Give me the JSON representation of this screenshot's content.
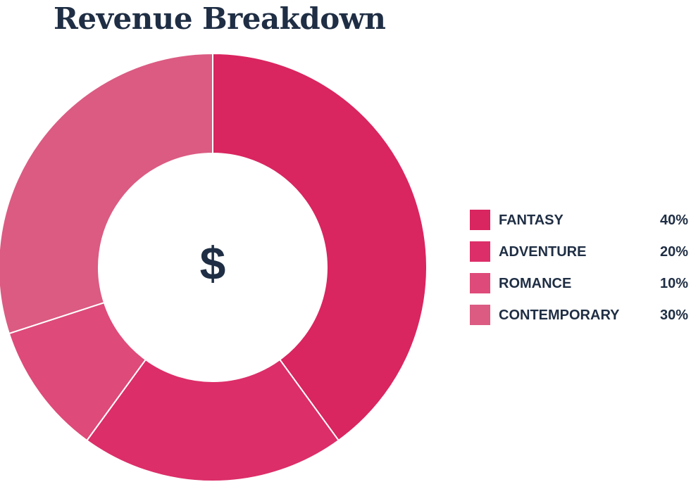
{
  "chart_data": {
    "type": "pie",
    "title": "Revenue Breakdown",
    "center_label": "$",
    "categories": [
      "FANTASY",
      "ADVENTURE",
      "ROMANCE",
      "CONTEMPORARY"
    ],
    "values": [
      40,
      20,
      10,
      30
    ],
    "value_labels": [
      "40%",
      "20%",
      "10%",
      "30%"
    ],
    "colors": [
      "#d92560",
      "#dc2e69",
      "#de4a79",
      "#db5b82"
    ],
    "legend_position": "right"
  }
}
